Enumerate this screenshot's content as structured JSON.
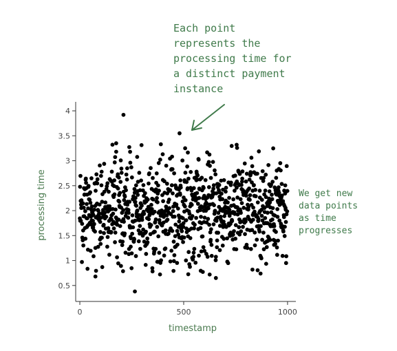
{
  "chart_data": {
    "type": "scatter",
    "title": "",
    "xlabel": "timestamp",
    "ylabel": "processing time",
    "xlim": [
      -20,
      1040
    ],
    "ylim": [
      0.18,
      4.18
    ],
    "x_ticks": [
      0,
      500,
      1000
    ],
    "y_ticks": [
      0.5,
      1,
      1.5,
      2,
      2.5,
      3,
      3.5,
      4
    ],
    "grid": false,
    "legend": "none",
    "n_points": 1000,
    "y_mean": 2.0,
    "y_std": 0.5,
    "y_range_typical": [
      0.7,
      3.35
    ],
    "highlighted_points": [
      {
        "x": 210,
        "y": 3.92
      },
      {
        "x": 480,
        "y": 3.55
      },
      {
        "x": 265,
        "y": 0.38
      },
      {
        "x": 75,
        "y": 0.68
      },
      {
        "x": 655,
        "y": 0.65
      },
      {
        "x": 755,
        "y": 3.32
      },
      {
        "x": 175,
        "y": 3.35
      }
    ],
    "marker_color": "#000000"
  },
  "annotations": {
    "top_note": [
      "Each point",
      "represents the",
      "processing time for",
      "a distinct payment",
      "instance"
    ],
    "right_note": [
      "We get new",
      "data points",
      "as time",
      "progresses"
    ],
    "color": "#3f7a4a"
  }
}
